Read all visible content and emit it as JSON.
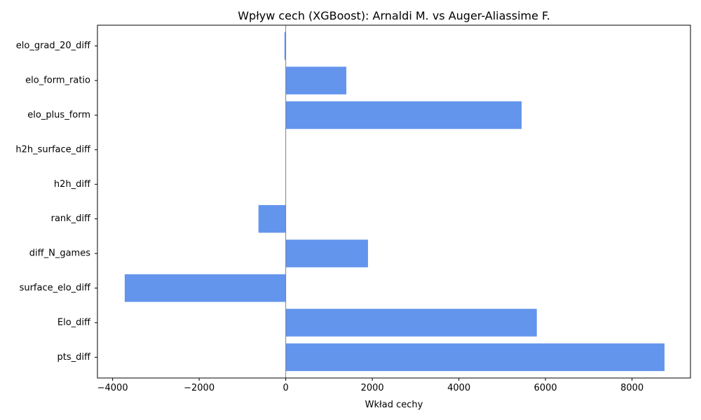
{
  "chart_data": {
    "type": "bar",
    "orientation": "horizontal",
    "title": "Wpływ cech (XGBoost): Arnaldi M. vs Auger-Aliassime F.",
    "xlabel": "Wkład cechy",
    "ylabel": "",
    "categories": [
      "pts_diff",
      "Elo_diff",
      "surface_elo_diff",
      "diff_N_games",
      "rank_diff",
      "h2h_diff",
      "h2h_surface_diff",
      "elo_plus_form",
      "elo_form_ratio",
      "elo_grad_20_diff"
    ],
    "values": [
      8750,
      5800,
      -3720,
      1900,
      -630,
      0,
      0,
      5450,
      1400,
      -30
    ],
    "xlim": [
      -4350,
      9350
    ],
    "xticks": [
      -4000,
      -2000,
      0,
      2000,
      4000,
      6000,
      8000
    ],
    "xtick_labels": [
      "−4000",
      "−2000",
      "0",
      "2000",
      "4000",
      "6000",
      "8000"
    ],
    "bar_color": "#6495ED",
    "zero_line_color": "#808080",
    "grid": false,
    "legend": "none"
  }
}
